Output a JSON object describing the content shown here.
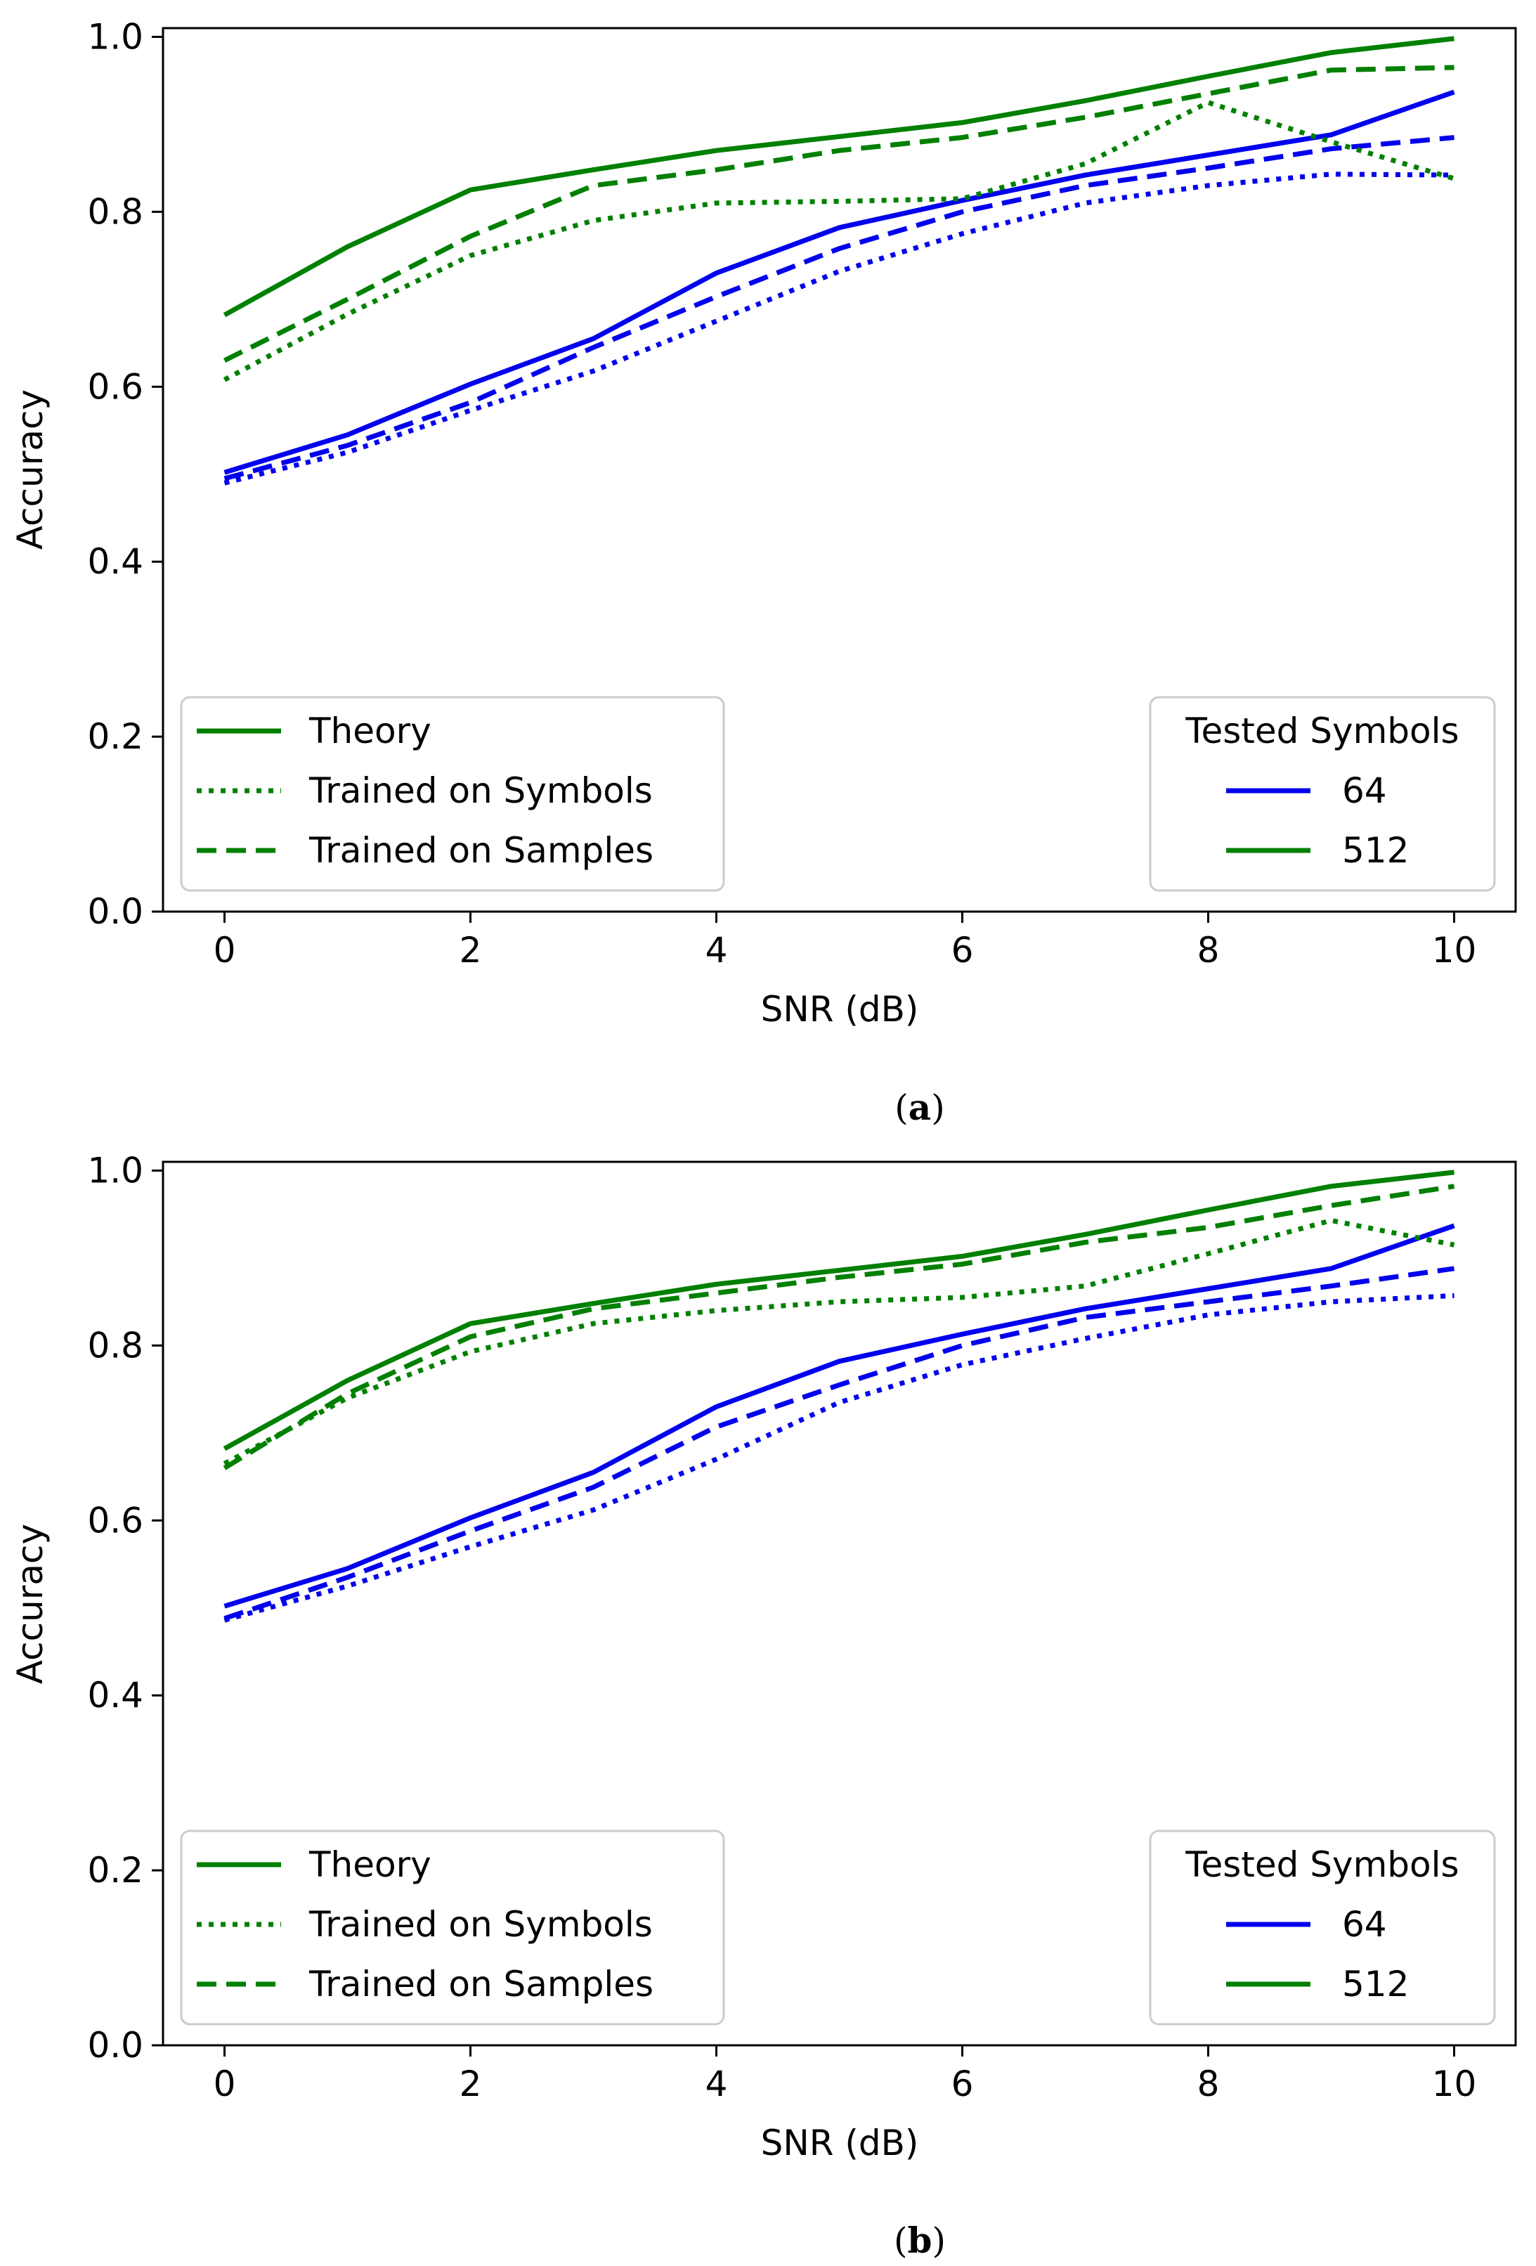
{
  "chart_data": [
    {
      "type": "line",
      "caption": "a",
      "xlabel": "SNR (dB)",
      "ylabel": "Accuracy",
      "xlim": [
        -0.5,
        10.5
      ],
      "ylim": [
        0.0,
        1.01
      ],
      "xticks": [
        "0",
        "2",
        "4",
        "6",
        "8",
        "10"
      ],
      "yticks": [
        "0.0",
        "0.2",
        "0.4",
        "0.6",
        "0.8",
        "1.0"
      ],
      "x": [
        0,
        1,
        2,
        3,
        4,
        5,
        6,
        7,
        8,
        9,
        10
      ],
      "series": [
        {
          "name": "Theory, 64 symbols",
          "color": "#0000ee",
          "style": "solid",
          "values": [
            0.502,
            0.545,
            0.603,
            0.655,
            0.73,
            0.782,
            0.813,
            0.842,
            0.865,
            0.888,
            0.937
          ]
        },
        {
          "name": "Trained on Symbols, 64 symbols",
          "color": "#0000ee",
          "style": "dotted",
          "values": [
            0.49,
            0.525,
            0.573,
            0.618,
            0.675,
            0.732,
            0.775,
            0.81,
            0.83,
            0.843,
            0.842
          ]
        },
        {
          "name": "Trained on Samples, 64 symbols",
          "color": "#0000ee",
          "style": "dashed",
          "values": [
            0.495,
            0.533,
            0.582,
            0.645,
            0.703,
            0.758,
            0.8,
            0.83,
            0.85,
            0.872,
            0.885
          ]
        },
        {
          "name": "Theory, 512 symbols",
          "color": "#008000",
          "style": "solid",
          "values": [
            0.682,
            0.76,
            0.825,
            0.848,
            0.87,
            0.886,
            0.902,
            0.927,
            0.955,
            0.982,
            0.998
          ]
        },
        {
          "name": "Trained on Symbols, 512 symbols",
          "color": "#008000",
          "style": "dotted",
          "values": [
            0.608,
            0.683,
            0.75,
            0.79,
            0.81,
            0.812,
            0.815,
            0.855,
            0.925,
            0.88,
            0.838
          ]
        },
        {
          "name": "Trained on Samples, 512 symbols",
          "color": "#008000",
          "style": "dashed",
          "values": [
            0.63,
            0.7,
            0.772,
            0.83,
            0.848,
            0.87,
            0.885,
            0.908,
            0.935,
            0.962,
            0.965
          ]
        }
      ],
      "legend_style": {
        "position": "lower-left",
        "entries": [
          {
            "label": "Theory",
            "style": "solid"
          },
          {
            "label": "Trained on Symbols",
            "style": "dotted"
          },
          {
            "label": "Trained on Samples",
            "style": "dashed"
          }
        ]
      },
      "legend_symbols": {
        "position": "lower-right",
        "title": "Tested Symbols",
        "entries": [
          {
            "label": "64",
            "color": "#0000ee"
          },
          {
            "label": "512",
            "color": "#008000"
          }
        ]
      }
    },
    {
      "type": "line",
      "caption": "b",
      "xlabel": "SNR (dB)",
      "ylabel": "Accuracy",
      "xlim": [
        -0.5,
        10.5
      ],
      "ylim": [
        0.0,
        1.01
      ],
      "xticks": [
        "0",
        "2",
        "4",
        "6",
        "8",
        "10"
      ],
      "yticks": [
        "0.0",
        "0.2",
        "0.4",
        "0.6",
        "0.8",
        "1.0"
      ],
      "x": [
        0,
        1,
        2,
        3,
        4,
        5,
        6,
        7,
        8,
        9,
        10
      ],
      "series": [
        {
          "name": "Theory, 64 symbols",
          "color": "#0000ee",
          "style": "solid",
          "values": [
            0.502,
            0.545,
            0.603,
            0.655,
            0.73,
            0.782,
            0.813,
            0.842,
            0.865,
            0.888,
            0.937
          ]
        },
        {
          "name": "Trained on Symbols, 64 symbols",
          "color": "#0000ee",
          "style": "dotted",
          "values": [
            0.486,
            0.525,
            0.57,
            0.612,
            0.67,
            0.735,
            0.778,
            0.808,
            0.835,
            0.85,
            0.857
          ]
        },
        {
          "name": "Trained on Samples, 64 symbols",
          "color": "#0000ee",
          "style": "dashed",
          "values": [
            0.488,
            0.535,
            0.588,
            0.638,
            0.707,
            0.755,
            0.8,
            0.832,
            0.85,
            0.868,
            0.888
          ]
        },
        {
          "name": "Theory, 512 symbols",
          "color": "#008000",
          "style": "solid",
          "values": [
            0.682,
            0.76,
            0.825,
            0.848,
            0.87,
            0.886,
            0.902,
            0.927,
            0.955,
            0.982,
            0.998
          ]
        },
        {
          "name": "Trained on Symbols, 512 symbols",
          "color": "#008000",
          "style": "dotted",
          "values": [
            0.665,
            0.74,
            0.793,
            0.825,
            0.84,
            0.85,
            0.855,
            0.868,
            0.905,
            0.943,
            0.915
          ]
        },
        {
          "name": "Trained on Samples, 512 symbols",
          "color": "#008000",
          "style": "dashed",
          "values": [
            0.66,
            0.745,
            0.81,
            0.842,
            0.86,
            0.878,
            0.893,
            0.918,
            0.935,
            0.96,
            0.982
          ]
        }
      ],
      "legend_style": {
        "position": "lower-left",
        "entries": [
          {
            "label": "Theory",
            "style": "solid"
          },
          {
            "label": "Trained on Symbols",
            "style": "dotted"
          },
          {
            "label": "Trained on Samples",
            "style": "dashed"
          }
        ]
      },
      "legend_symbols": {
        "position": "lower-right",
        "title": "Tested Symbols",
        "entries": [
          {
            "label": "64",
            "color": "#0000ee"
          },
          {
            "label": "512",
            "color": "#008000"
          }
        ]
      }
    }
  ],
  "legend_line_color": "#008000"
}
